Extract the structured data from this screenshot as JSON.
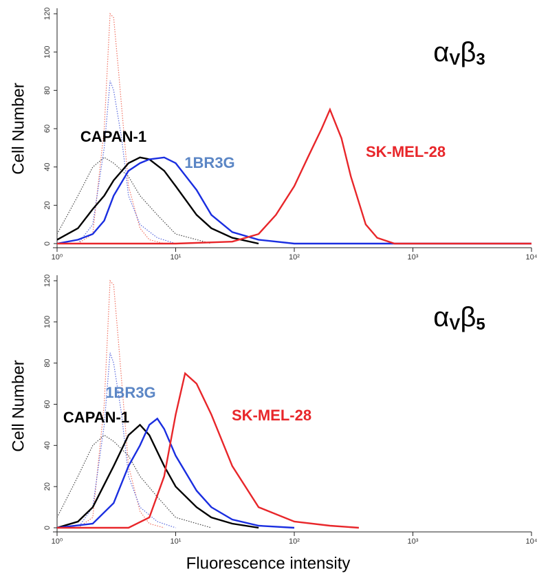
{
  "charts": [
    {
      "chart_data": {
        "type": "line",
        "title": [
          "α",
          "V",
          "β",
          "3"
        ],
        "y_label": "Cell Number",
        "xscale": "log",
        "xlim": [
          1,
          10000
        ],
        "ylim": [
          0,
          120
        ],
        "xticks": [
          {
            "value": 1,
            "label": "10⁰"
          },
          {
            "value": 10,
            "label": "10¹"
          },
          {
            "value": 100,
            "label": "10²"
          },
          {
            "value": 1000,
            "label": "10³"
          },
          {
            "value": 10000,
            "label": "10⁴"
          }
        ],
        "yticks": [
          0,
          20,
          40,
          60,
          80,
          100,
          120
        ],
        "series": [
          {
            "color": "#f07060",
            "dash": "dotted",
            "x": [
              1.5,
              2,
              2.5,
              2.8,
              3,
              3.3,
              4,
              5,
              6,
              8
            ],
            "values": [
              0,
              5,
              60,
              120,
              118,
              90,
              30,
              8,
              2,
              0
            ]
          },
          {
            "color": "#5566dd",
            "dash": "dotted",
            "x": [
              1.5,
              2,
              2.5,
              2.8,
              3,
              3.5,
              4,
              5,
              7,
              10
            ],
            "values": [
              0,
              10,
              50,
              85,
              80,
              55,
              25,
              10,
              3,
              0
            ]
          },
          {
            "color": "#444444",
            "dash": "dotted",
            "x": [
              1,
              1.5,
              2,
              2.5,
              3,
              4,
              5,
              7,
              10,
              20
            ],
            "values": [
              5,
              25,
              40,
              45,
              42,
              35,
              25,
              15,
              5,
              0
            ]
          },
          {
            "name": "CAPAN-1",
            "color": "#000000",
            "label_color": "#000000",
            "x": [
              1,
              1.5,
              2,
              2.5,
              3,
              4,
              5,
              6,
              8,
              10,
              15,
              20,
              30,
              50
            ],
            "values": [
              2,
              8,
              18,
              25,
              33,
              42,
              45,
              44,
              38,
              30,
              15,
              8,
              3,
              0
            ]
          },
          {
            "name": "1BR3G",
            "color": "#1a2ee0",
            "label_color": "#5b86c5",
            "x": [
              1,
              1.5,
              2,
              2.5,
              3,
              4,
              5,
              6,
              8,
              10,
              15,
              20,
              30,
              50,
              100,
              1000,
              10000
            ],
            "values": [
              0,
              2,
              5,
              12,
              25,
              38,
              42,
              44,
              45,
              42,
              28,
              15,
              6,
              2,
              0,
              0,
              0
            ]
          },
          {
            "name": "SK-MEL-28",
            "color": "#e8262a",
            "label_color": "#e8262a",
            "x": [
              1,
              10,
              30,
              50,
              70,
              100,
              130,
              170,
              200,
              250,
              300,
              400,
              500,
              700,
              10000
            ],
            "values": [
              0,
              0,
              1,
              5,
              15,
              30,
              45,
              60,
              70,
              55,
              35,
              10,
              3,
              0,
              0
            ]
          }
        ]
      }
    },
    {
      "chart_data": {
        "type": "line",
        "title": [
          "α",
          "V",
          "β",
          "5"
        ],
        "y_label": "Cell Number",
        "x_label": "Fluorescence intensity",
        "xscale": "log",
        "xlim": [
          1,
          10000
        ],
        "ylim": [
          0,
          120
        ],
        "xticks": [
          {
            "value": 1,
            "label": "10⁰"
          },
          {
            "value": 10,
            "label": "10¹"
          },
          {
            "value": 100,
            "label": "10²"
          },
          {
            "value": 1000,
            "label": "10³"
          },
          {
            "value": 10000,
            "label": "10⁴"
          }
        ],
        "yticks": [
          0,
          20,
          40,
          60,
          80,
          100,
          120
        ],
        "series": [
          {
            "color": "#f07060",
            "dash": "dotted",
            "x": [
              1.5,
              2,
              2.5,
              2.8,
              3,
              3.3,
              4,
              5,
              6,
              8
            ],
            "values": [
              0,
              5,
              60,
              120,
              118,
              90,
              30,
              8,
              2,
              0
            ]
          },
          {
            "color": "#5566dd",
            "dash": "dotted",
            "x": [
              1.5,
              2,
              2.5,
              2.8,
              3,
              3.5,
              4,
              5,
              7,
              10
            ],
            "values": [
              0,
              10,
              50,
              85,
              80,
              55,
              25,
              10,
              3,
              0
            ]
          },
          {
            "color": "#444444",
            "dash": "dotted",
            "x": [
              1,
              1.5,
              2,
              2.5,
              3,
              4,
              5,
              7,
              10,
              20
            ],
            "values": [
              5,
              25,
              40,
              45,
              42,
              35,
              25,
              15,
              5,
              0
            ]
          },
          {
            "name": "CAPAN-1",
            "color": "#000000",
            "label_color": "#000000",
            "x": [
              1,
              1.5,
              2,
              3,
              4,
              5,
              6,
              8,
              10,
              15,
              20,
              30,
              50
            ],
            "values": [
              0,
              3,
              10,
              30,
              45,
              50,
              45,
              30,
              20,
              10,
              5,
              2,
              0
            ]
          },
          {
            "name": "1BR3G",
            "color": "#1a2ee0",
            "label_color": "#5b86c5",
            "x": [
              1,
              2,
              3,
              4,
              5,
              6,
              7,
              8,
              10,
              15,
              20,
              30,
              50,
              100
            ],
            "values": [
              0,
              2,
              12,
              30,
              40,
              50,
              53,
              48,
              35,
              18,
              10,
              4,
              1,
              0
            ]
          },
          {
            "name": "SK-MEL-28",
            "color": "#e8262a",
            "label_color": "#e8262a",
            "x": [
              1,
              4,
              6,
              8,
              10,
              12,
              15,
              20,
              30,
              50,
              100,
              200,
              350
            ],
            "values": [
              0,
              0,
              5,
              25,
              55,
              75,
              70,
              55,
              30,
              10,
              3,
              1,
              0
            ]
          }
        ]
      }
    }
  ]
}
